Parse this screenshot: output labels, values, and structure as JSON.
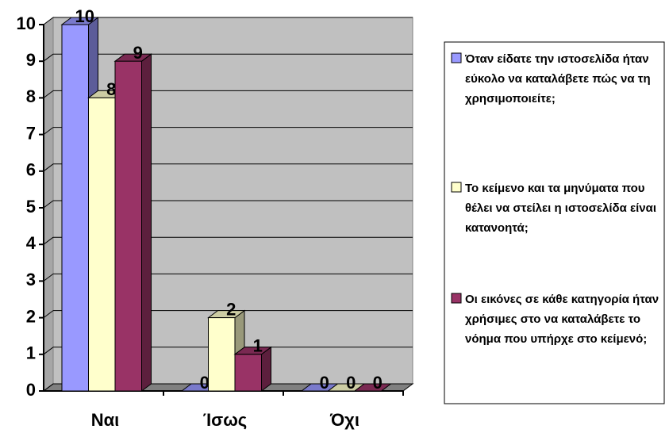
{
  "chart_data": {
    "type": "bar3d",
    "categories": [
      "Ναι",
      "Ίσως",
      "Όχι"
    ],
    "series": [
      {
        "name": "Όταν είδατε την ιστοσελίδα ήταν εύκολο να καταλάβετε πώς να τη χρησιμοποιείτε;",
        "color": "#9999ff",
        "values": [
          10,
          0,
          0
        ]
      },
      {
        "name": "Το κείμενο και τα μηνύματα που θέλει να στείλει η ιστοσελίδα είναι κατανοητά;",
        "color": "#ffffcc",
        "values": [
          8,
          2,
          0
        ]
      },
      {
        "name": "Οι εικόνες σε κάθε κατηγορία ήταν χρήσιμες στο να καταλάβετε το νόημα που υπήρχε στο κείμενό;",
        "color": "#993366",
        "values": [
          9,
          1,
          0
        ]
      }
    ],
    "ylim": [
      0,
      10
    ],
    "yticks": [
      0,
      1,
      2,
      3,
      4,
      5,
      6,
      7,
      8,
      9,
      10
    ],
    "grid": true,
    "legend": "right"
  }
}
